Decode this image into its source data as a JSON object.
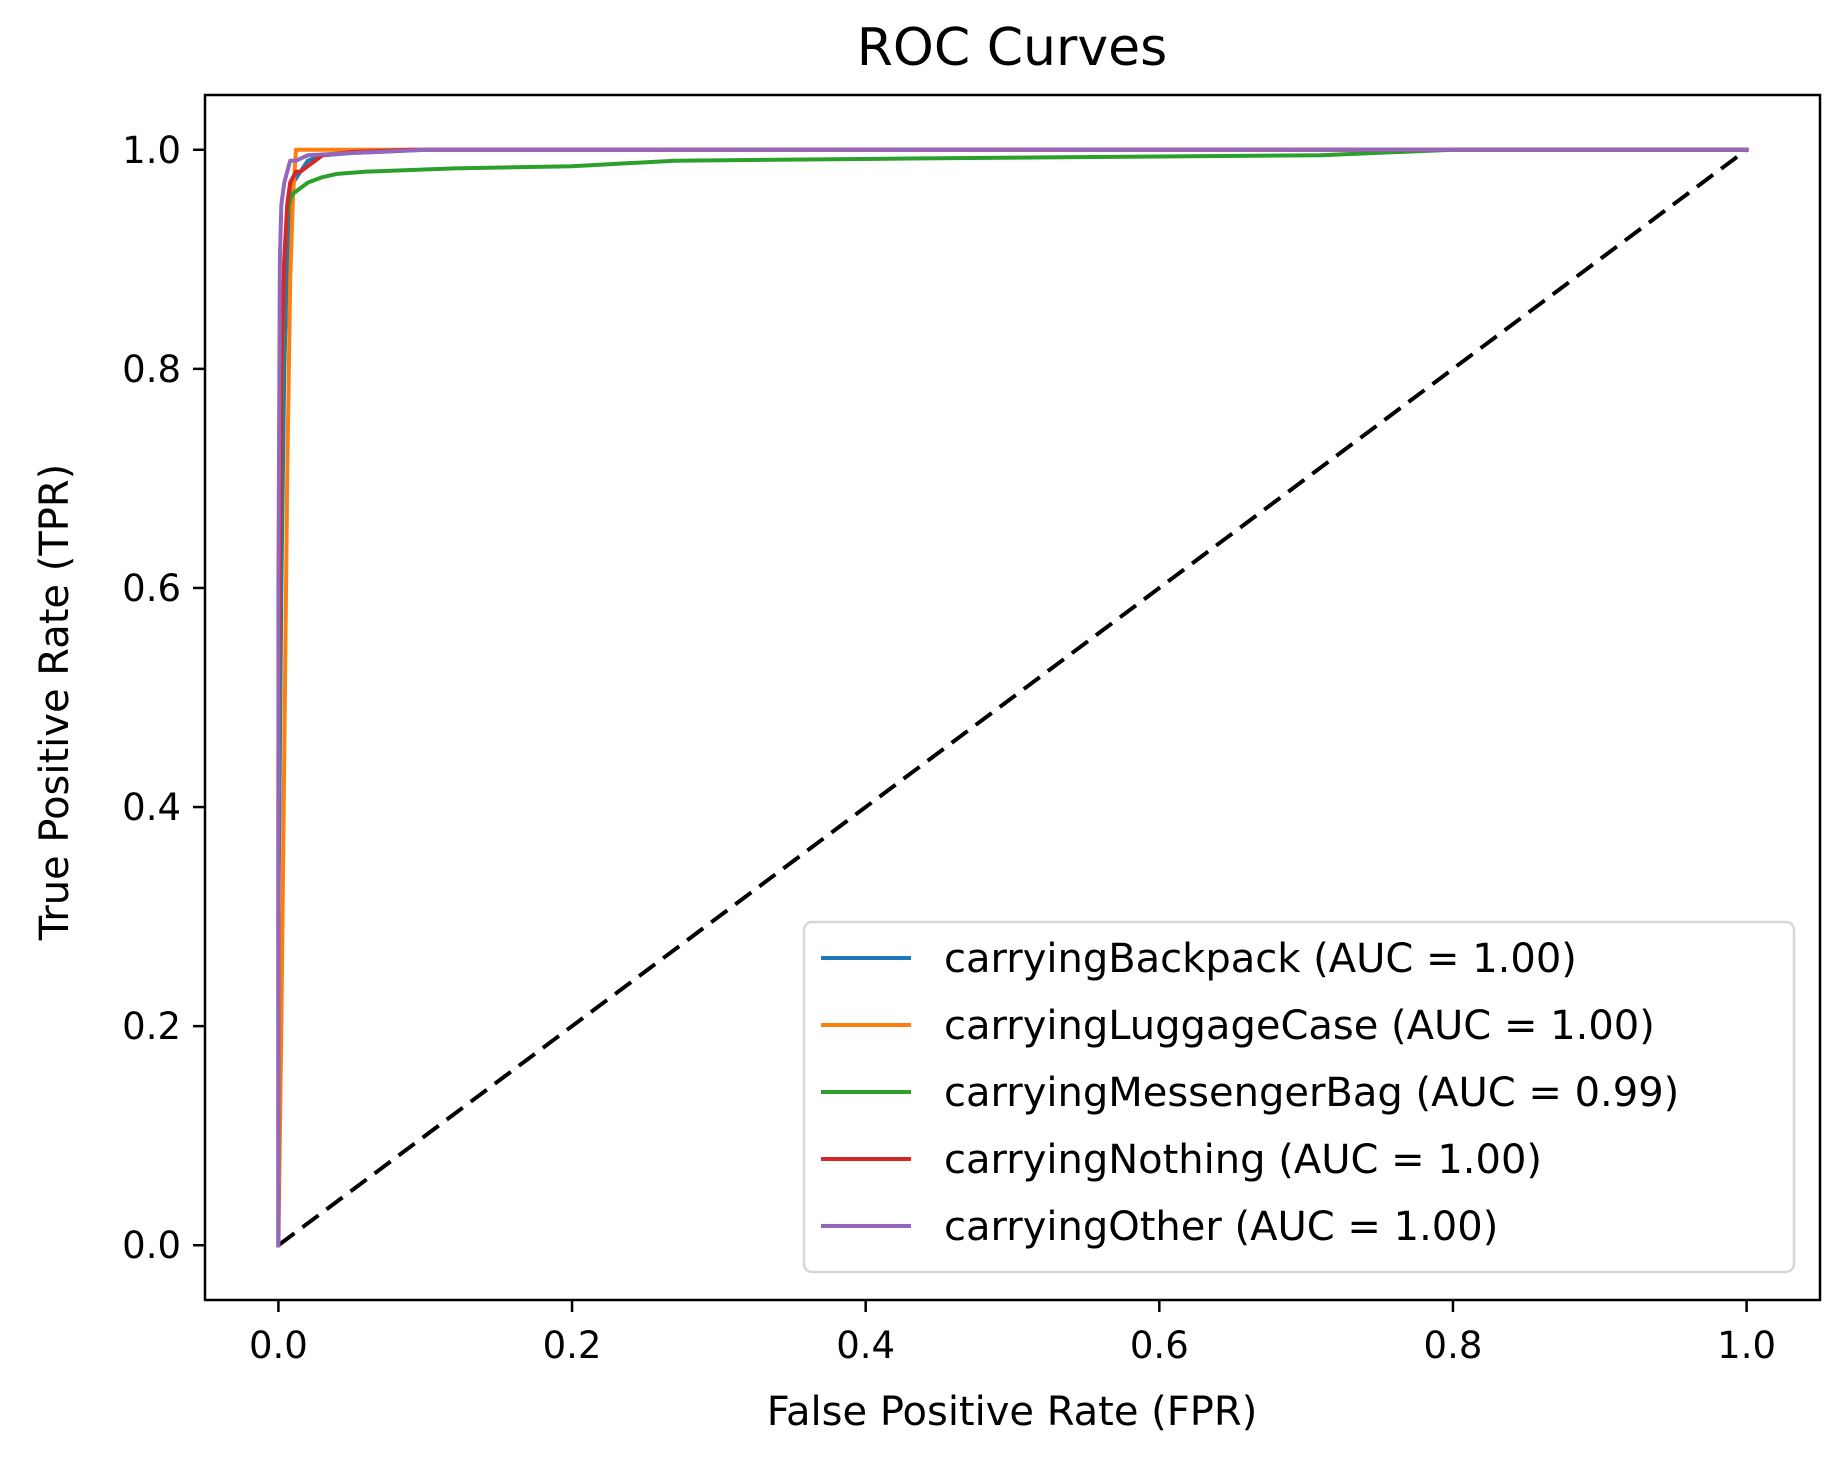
{
  "chart_data": {
    "type": "line",
    "title": "ROC Curves",
    "xlabel": "False Positive Rate (FPR)",
    "ylabel": "True Positive Rate (TPR)",
    "xlim": [
      -0.05,
      1.05
    ],
    "ylim": [
      -0.05,
      1.05
    ],
    "xticks": [
      0.0,
      0.2,
      0.4,
      0.6,
      0.8,
      1.0
    ],
    "yticks": [
      0.0,
      0.2,
      0.4,
      0.6,
      0.8,
      1.0
    ],
    "xtick_labels": [
      "0.0",
      "0.2",
      "0.4",
      "0.6",
      "0.8",
      "1.0"
    ],
    "ytick_labels": [
      "0.0",
      "0.2",
      "0.4",
      "0.6",
      "0.8",
      "1.0"
    ],
    "grid": false,
    "legend_position": "lower-right",
    "series": [
      {
        "name": "carryingBackpack (AUC = 1.00)",
        "color": "#1f77b4",
        "x": [
          0.0,
          0.0,
          0.002,
          0.004,
          0.006,
          0.008,
          0.01,
          0.015,
          0.02,
          0.03,
          0.05,
          0.1,
          0.3,
          1.0
        ],
        "y": [
          0.0,
          0.3,
          0.6,
          0.8,
          0.9,
          0.95,
          0.97,
          0.98,
          0.99,
          0.995,
          0.997,
          1.0,
          1.0,
          1.0
        ]
      },
      {
        "name": "carryingLuggageCase (AUC = 1.00)",
        "color": "#ff7f0e",
        "x": [
          0.0,
          0.002,
          0.004,
          0.006,
          0.008,
          0.01,
          0.012,
          0.1,
          1.0
        ],
        "y": [
          0.0,
          0.2,
          0.45,
          0.7,
          0.88,
          0.96,
          1.0,
          1.0,
          1.0
        ]
      },
      {
        "name": "carryingMessengerBag (AUC = 0.99)",
        "color": "#2ca02c",
        "x": [
          0.0,
          0.0,
          0.002,
          0.004,
          0.006,
          0.008,
          0.01,
          0.015,
          0.02,
          0.03,
          0.04,
          0.06,
          0.12,
          0.2,
          0.27,
          0.43,
          0.71,
          0.8,
          1.0
        ],
        "y": [
          0.0,
          0.4,
          0.75,
          0.9,
          0.94,
          0.955,
          0.96,
          0.965,
          0.97,
          0.975,
          0.978,
          0.98,
          0.983,
          0.985,
          0.99,
          0.992,
          0.995,
          1.0,
          1.0
        ]
      },
      {
        "name": "carryingNothing (AUC = 1.00)",
        "color": "#d62728",
        "x": [
          0.0,
          0.0,
          0.002,
          0.004,
          0.006,
          0.008,
          0.01,
          0.012,
          0.015,
          0.02,
          0.025,
          0.03,
          0.05,
          0.09,
          0.33,
          1.0
        ],
        "y": [
          0.0,
          0.45,
          0.8,
          0.9,
          0.95,
          0.97,
          0.975,
          0.98,
          0.98,
          0.985,
          0.99,
          0.995,
          0.998,
          1.0,
          1.0,
          1.0
        ]
      },
      {
        "name": "carryingOther (AUC = 1.00)",
        "color": "#9467bd",
        "x": [
          0.0,
          0.0,
          0.001,
          0.002,
          0.004,
          0.006,
          0.008,
          0.012,
          0.02,
          0.05,
          0.1,
          0.3,
          1.0
        ],
        "y": [
          0.0,
          0.6,
          0.9,
          0.95,
          0.97,
          0.98,
          0.99,
          0.99,
          0.995,
          0.997,
          1.0,
          1.0,
          1.0
        ]
      }
    ],
    "reference_line": {
      "style": "dashed",
      "color": "#000000",
      "x": [
        0.0,
        1.0
      ],
      "y": [
        0.0,
        1.0
      ]
    }
  }
}
